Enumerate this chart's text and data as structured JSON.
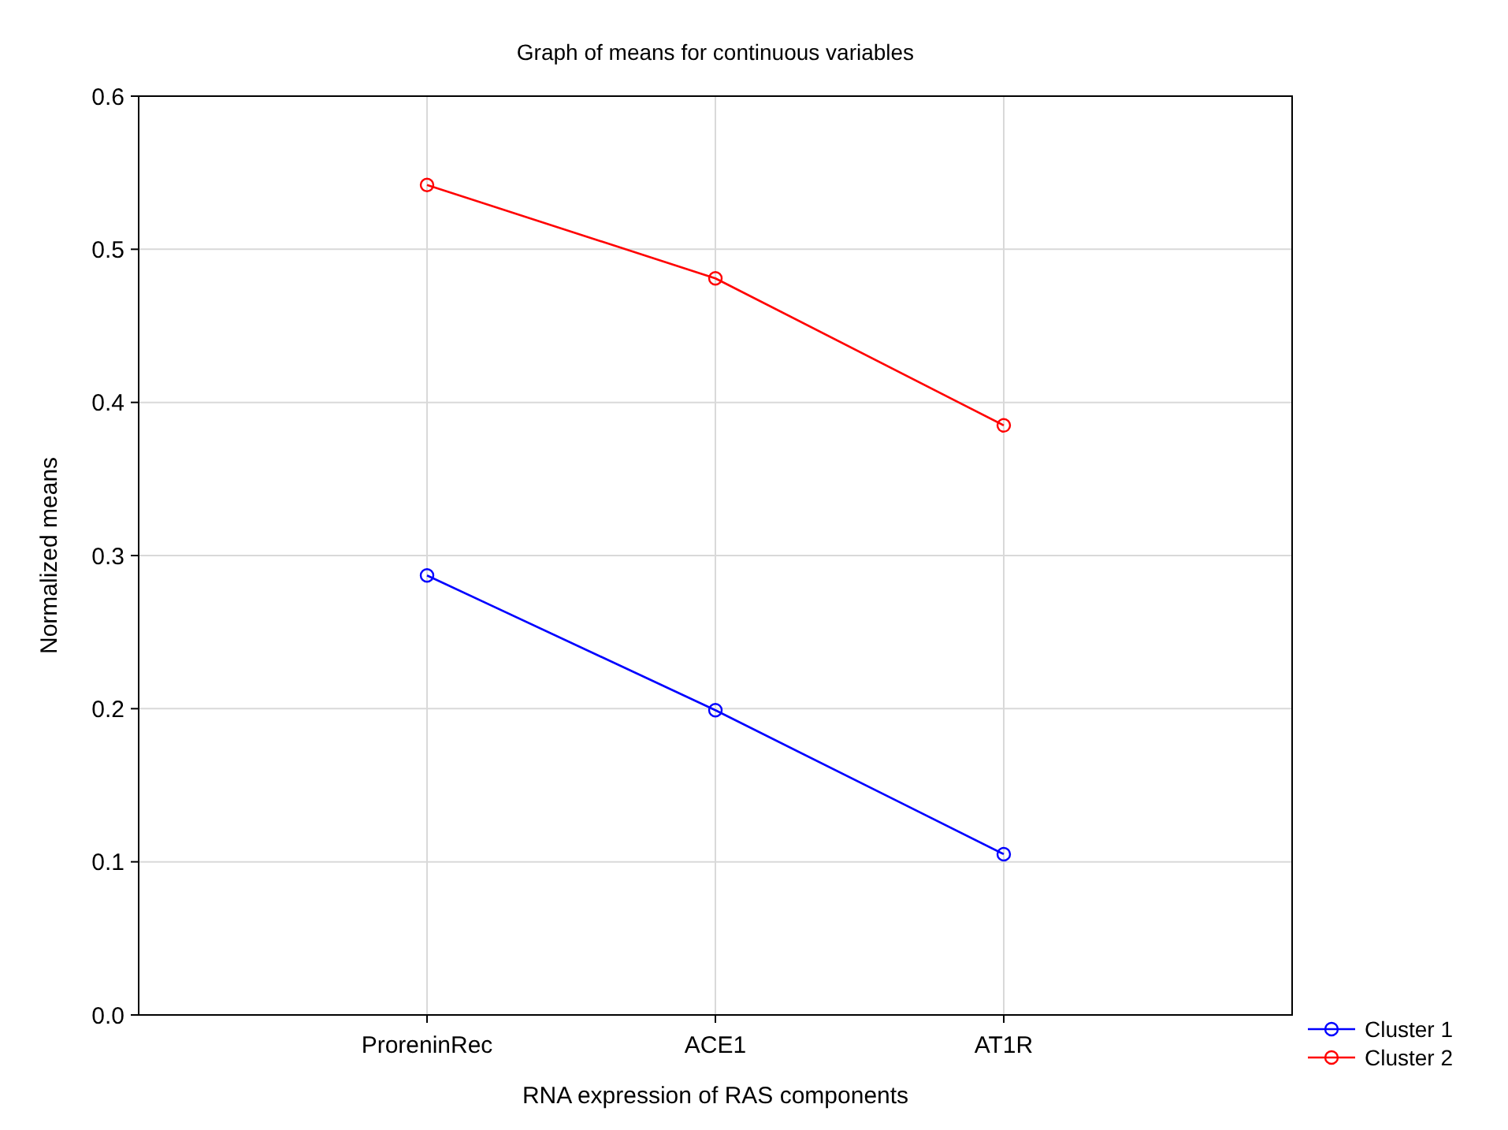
{
  "chart_data": {
    "type": "line",
    "title": "Graph of means for continuous variables",
    "xlabel": "RNA expression of RAS components",
    "ylabel": "Normalized means",
    "categories": [
      "ProreninRec",
      "ACE1",
      "AT1R"
    ],
    "series": [
      {
        "name": "Cluster 1",
        "color": "#0000ff",
        "values": [
          0.287,
          0.199,
          0.105
        ]
      },
      {
        "name": "Cluster 2",
        "color": "#ff0000",
        "values": [
          0.542,
          0.481,
          0.385
        ]
      }
    ],
    "ylim": [
      0,
      0.6
    ],
    "yticks": [
      {
        "value": 0,
        "label": "0.0"
      },
      0.1,
      0.2,
      0.3,
      0.4,
      0.5,
      0.6
    ],
    "grid": true,
    "legend": "bottom right",
    "marker": "circle",
    "line_style": "solid"
  }
}
